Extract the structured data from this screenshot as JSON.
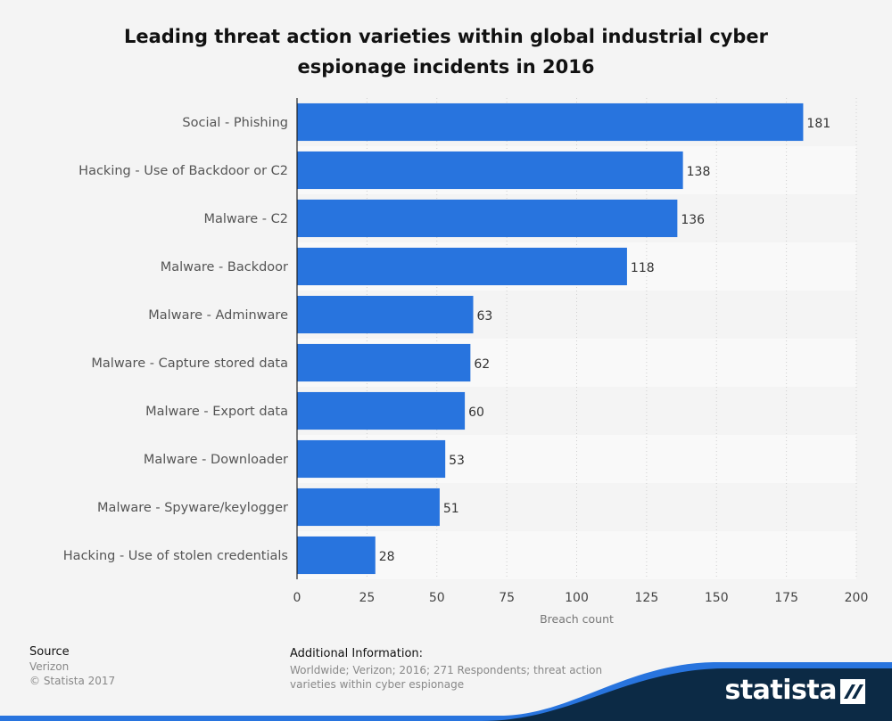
{
  "title": "Leading threat action varieties within global industrial cyber espionage incidents in 2016",
  "footer": {
    "source_label": "Source",
    "source_lines": [
      "Verizon",
      "© Statista 2017"
    ],
    "additional_label": "Additional Information:",
    "additional_text": "Worldwide; Verizon; 2016; 271 Respondents; threat action varieties within cyber espionage",
    "brand": "statista"
  },
  "colors": {
    "bar": "#2874de",
    "background": "#f4f4f4",
    "band_light": "#f9f9f9",
    "brand_dark": "#0c2a45",
    "brand_accent": "#2874de"
  },
  "chart_data": {
    "type": "bar",
    "orientation": "horizontal",
    "categories": [
      "Social - Phishing",
      "Hacking - Use of Backdoor or C2",
      "Malware - C2",
      "Malware - Backdoor",
      "Malware - Adminware",
      "Malware - Capture stored data",
      "Malware - Export data",
      "Malware - Downloader",
      "Malware - Spyware/keylogger",
      "Hacking - Use of stolen credentials"
    ],
    "values": [
      181,
      138,
      136,
      118,
      63,
      62,
      60,
      53,
      51,
      28
    ],
    "xlabel": "Breach count",
    "ylabel": "",
    "xlim": [
      0,
      200
    ],
    "xticks": [
      0,
      25,
      50,
      75,
      100,
      125,
      150,
      175,
      200
    ],
    "grid": true,
    "data_labels": true
  }
}
